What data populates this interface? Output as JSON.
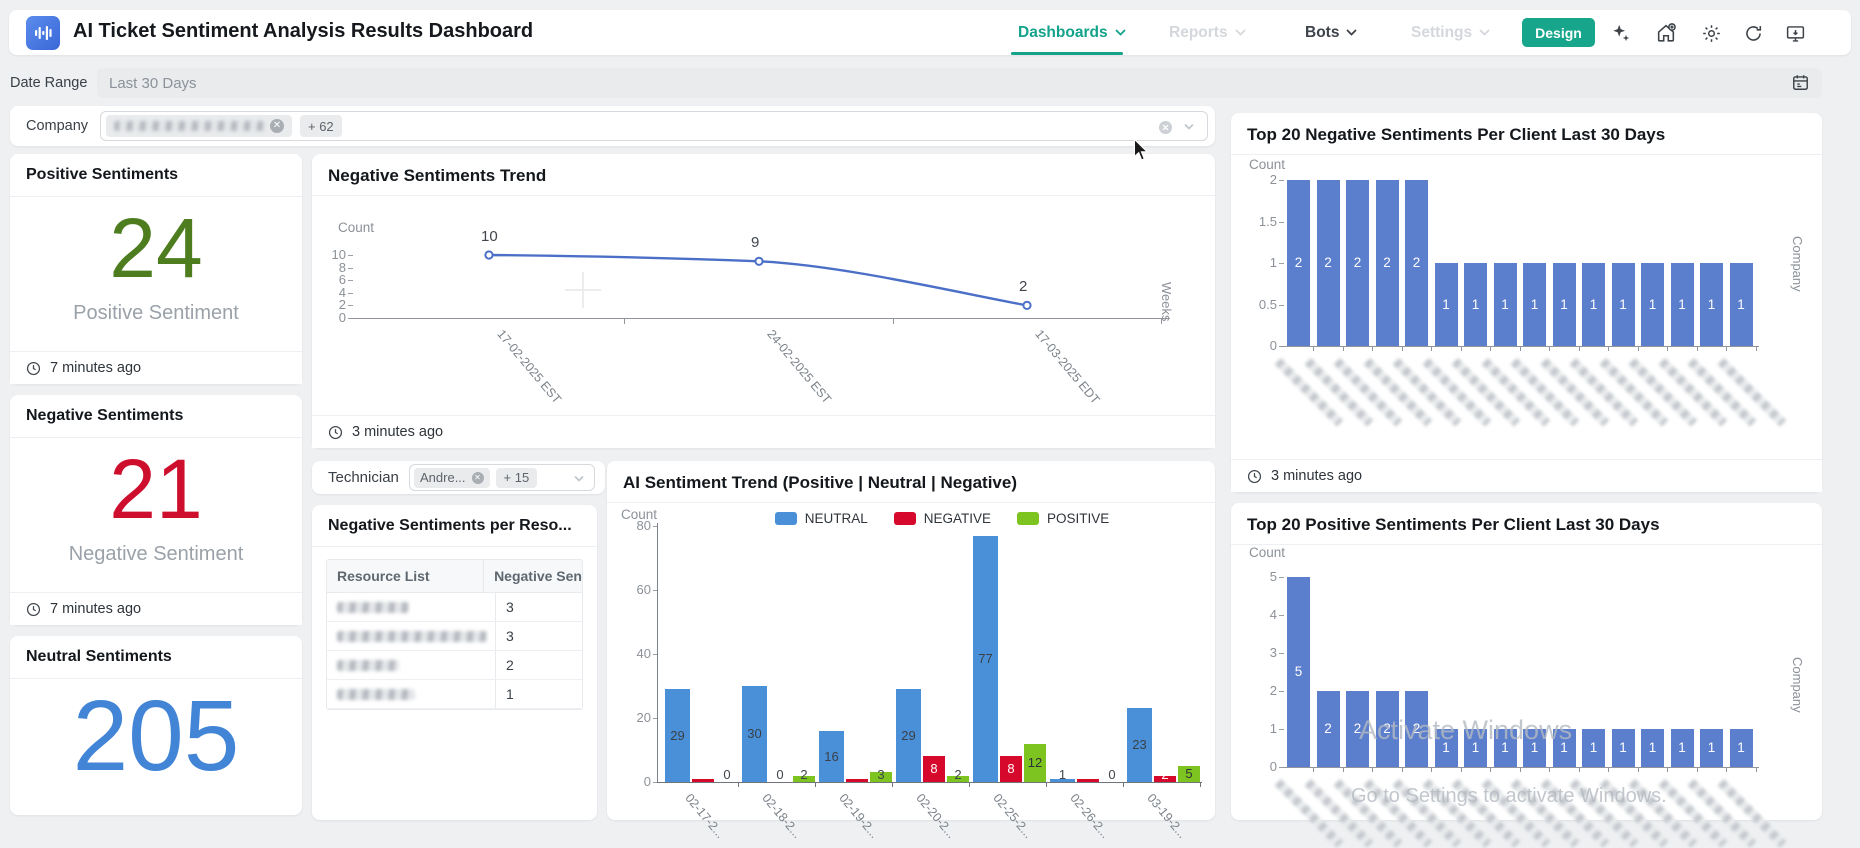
{
  "header": {
    "title": "AI Ticket Sentiment Analysis Results Dashboard",
    "nav": [
      {
        "label": "Dashboards",
        "state": "active"
      },
      {
        "label": "Reports",
        "state": "disabled"
      },
      {
        "label": "Bots",
        "state": "default"
      },
      {
        "label": "Settings",
        "state": "disabled"
      }
    ],
    "design_button": "Design",
    "icons": [
      "sparkles-icon",
      "home-add-icon",
      "gear-icon",
      "refresh-icon",
      "screen-share-icon"
    ],
    "accent_color": "#17a68b"
  },
  "filters": {
    "date_range_label": "Date Range",
    "date_range_value": "Last 30 Days",
    "company_label": "Company",
    "company_selected_redacted": true,
    "company_more": "+ 62",
    "technician_label": "Technician",
    "technician_chip": "Andre...",
    "technician_more": "+ 15"
  },
  "kpis": [
    {
      "title": "Positive Sentiments",
      "value": "24",
      "caption": "Positive Sentiment",
      "updated": "7 minutes ago",
      "color": "#4e7d20"
    },
    {
      "title": "Negative Sentiments",
      "value": "21",
      "caption": "Negative Sentiment",
      "updated": "7 minutes ago",
      "color": "#ce0e2d"
    },
    {
      "title": "Neutral Sentiments",
      "value": "205",
      "color": "#4285d6"
    }
  ],
  "resource_table": {
    "title": "Negative Sentiments per Reso...",
    "columns": [
      "Resource List",
      "Negative Sen"
    ],
    "rows_redacted_names": true,
    "values": [
      3,
      3,
      2,
      1
    ]
  },
  "chart_data": [
    {
      "id": "negative_sentiments_trend",
      "type": "line",
      "title": "Negative Sentiments Trend",
      "ylabel": "Count",
      "xlabel": "Weeks",
      "x": [
        "17-02-2025 EST",
        "24-02-2025 EST",
        "17-03-2025 EDT"
      ],
      "values": [
        10,
        9,
        2
      ],
      "yticks": [
        0,
        2,
        4,
        6,
        8,
        10
      ],
      "ylim": [
        0,
        10
      ],
      "line_color": "#4b6fc7",
      "updated": "3 minutes ago"
    },
    {
      "id": "ai_sentiment_trend",
      "type": "bar",
      "title": "AI Sentiment Trend (Positive | Neutral | Negative)",
      "ylabel": "Count",
      "categories": [
        "02-17-2",
        "02-18-2",
        "02-19-2",
        "02-20-2",
        "02-25-2",
        "02-26-2",
        "03-19-2"
      ],
      "series": [
        {
          "name": "NEUTRAL",
          "color": "#4a90d9",
          "values": [
            29,
            30,
            16,
            29,
            77,
            1,
            23
          ]
        },
        {
          "name": "NEGATIVE",
          "color": "#d6082b",
          "values": [
            1,
            0,
            1,
            8,
            8,
            1,
            2
          ]
        },
        {
          "name": "POSITIVE",
          "color": "#7dc421",
          "values": [
            0,
            2,
            3,
            2,
            12,
            0,
            5
          ]
        }
      ],
      "yticks": [
        0,
        20,
        40,
        60,
        80
      ],
      "ylim": [
        0,
        80
      ],
      "legend_position": "top"
    },
    {
      "id": "top20_negative_per_client",
      "type": "bar",
      "title": "Top 20 Negative Sentiments Per Client Last 30 Days",
      "ylabel": "Count",
      "xlabel": "Company",
      "categories_redacted": true,
      "values": [
        2,
        2,
        2,
        2,
        2,
        1,
        1,
        1,
        1,
        1,
        1,
        1,
        1,
        1,
        1,
        1
      ],
      "yticks": [
        0,
        0.5,
        1,
        1.5,
        2
      ],
      "ylim": [
        0,
        2
      ],
      "bar_color": "#5b7ecd",
      "updated": "3 minutes ago"
    },
    {
      "id": "top20_positive_per_client",
      "type": "bar",
      "title": "Top 20 Positive Sentiments Per Client Last 30 Days",
      "ylabel": "Count",
      "xlabel": "Company",
      "categories_redacted": true,
      "values": [
        5,
        2,
        2,
        2,
        2,
        1,
        1,
        1,
        1,
        1,
        1,
        1,
        1,
        1,
        1,
        1
      ],
      "yticks": [
        0,
        1,
        2,
        3,
        4,
        5
      ],
      "ylim": [
        0,
        5
      ],
      "bar_color": "#5b7ecd"
    }
  ],
  "watermark": {
    "line1": "Activate Windows",
    "line2": "Go to Settings to activate Windows."
  }
}
